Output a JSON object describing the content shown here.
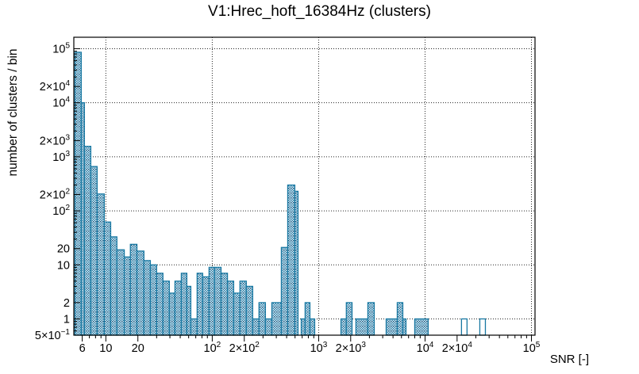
{
  "chart_data": {
    "type": "bar",
    "title": "V1:Hrec_hoft_16384Hz (clusters)",
    "xlabel": "SNR [-]",
    "ylabel": "number of clusters / bin",
    "x_scale": "log",
    "y_scale": "log",
    "x_range": [
      5,
      108000
    ],
    "y_range": [
      0.5,
      163000
    ],
    "grid": true,
    "legend": "none",
    "colors": {
      "bar_outline": "#1878a2",
      "bar_fill_dark": "#2e80a8",
      "bar_fill_light": "#ddecf4",
      "grid": "#000000",
      "axis": "#000000",
      "text": "#000000"
    },
    "x_ticks": [
      {
        "v": 6,
        "t": "6"
      },
      {
        "v": 10,
        "t": "10"
      },
      {
        "v": 20,
        "t": "20"
      },
      {
        "v": 100,
        "t": "10^2"
      },
      {
        "v": 200,
        "t": "2×10^2"
      },
      {
        "v": 1000,
        "t": "10^3"
      },
      {
        "v": 2000,
        "t": "2×10^3"
      },
      {
        "v": 10000,
        "t": "10^4"
      },
      {
        "v": 20000,
        "t": "2×10^4"
      },
      {
        "v": 100000,
        "t": "10^5"
      }
    ],
    "y_ticks": [
      {
        "v": 100000,
        "t": "10^5"
      },
      {
        "v": 20000,
        "t": "2×10^4"
      },
      {
        "v": 10000,
        "t": "10^4"
      },
      {
        "v": 2000,
        "t": "2×10^3"
      },
      {
        "v": 1000,
        "t": "10^3"
      },
      {
        "v": 200,
        "t": "2×10^2"
      },
      {
        "v": 100,
        "t": "10^2"
      },
      {
        "v": 20,
        "t": "20"
      },
      {
        "v": 10,
        "t": "10"
      },
      {
        "v": 2,
        "t": "2"
      },
      {
        "v": 1,
        "t": "1"
      },
      {
        "v": 0.5,
        "t": "5×10^−1"
      }
    ],
    "bars": [
      {
        "x0": 5.12,
        "x1": 5.87,
        "y": 86000
      },
      {
        "x0": 5.87,
        "x1": 6.29,
        "y": 10000
      },
      {
        "x0": 6.29,
        "x1": 7.22,
        "y": 1560
      },
      {
        "x0": 7.22,
        "x1": 8.28,
        "y": 660
      },
      {
        "x0": 8.28,
        "x1": 9.66,
        "y": 205
      },
      {
        "x0": 9.66,
        "x1": 11.1,
        "y": 62
      },
      {
        "x0": 11.1,
        "x1": 12.7,
        "y": 33
      },
      {
        "x0": 12.7,
        "x1": 14.9,
        "y": 19
      },
      {
        "x0": 14.9,
        "x1": 17.0,
        "y": 14
      },
      {
        "x0": 17.0,
        "x1": 19.6,
        "y": 24
      },
      {
        "x0": 19.6,
        "x1": 22.8,
        "y": 18
      },
      {
        "x0": 22.8,
        "x1": 26.2,
        "y": 12
      },
      {
        "x0": 26.2,
        "x1": 30.0,
        "y": 10
      },
      {
        "x0": 30.0,
        "x1": 34.4,
        "y": 7
      },
      {
        "x0": 34.4,
        "x1": 39.5,
        "y": 5
      },
      {
        "x0": 39.5,
        "x1": 44.6,
        "y": 3
      },
      {
        "x0": 44.6,
        "x1": 51.2,
        "y": 5
      },
      {
        "x0": 51.2,
        "x1": 57.7,
        "y": 7
      },
      {
        "x0": 57.7,
        "x1": 62.9,
        "y": 4
      },
      {
        "x0": 62.9,
        "x1": 72.1,
        "y": 1
      },
      {
        "x0": 72.1,
        "x1": 81.3,
        "y": 7
      },
      {
        "x0": 81.3,
        "x1": 93.3,
        "y": 6
      },
      {
        "x0": 93.3,
        "x1": 105,
        "y": 9
      },
      {
        "x0": 105,
        "x1": 121,
        "y": 9
      },
      {
        "x0": 121,
        "x1": 139,
        "y": 7
      },
      {
        "x0": 139,
        "x1": 159,
        "y": 5
      },
      {
        "x0": 159,
        "x1": 182,
        "y": 3
      },
      {
        "x0": 182,
        "x1": 209,
        "y": 5
      },
      {
        "x0": 209,
        "x1": 240,
        "y": 4
      },
      {
        "x0": 240,
        "x1": 275,
        "y": 1
      },
      {
        "x0": 275,
        "x1": 316,
        "y": 2
      },
      {
        "x0": 316,
        "x1": 363,
        "y": 1
      },
      {
        "x0": 363,
        "x1": 446,
        "y": 2
      },
      {
        "x0": 446,
        "x1": 512,
        "y": 21
      },
      {
        "x0": 512,
        "x1": 597,
        "y": 300
      },
      {
        "x0": 597,
        "x1": 640,
        "y": 230
      },
      {
        "x0": 686,
        "x1": 746,
        "y": 1
      },
      {
        "x0": 746,
        "x1": 828,
        "y": 2
      },
      {
        "x0": 828,
        "x1": 918,
        "y": 1
      },
      {
        "x0": 1620,
        "x1": 1820,
        "y": 1
      },
      {
        "x0": 1820,
        "x1": 2060,
        "y": 2
      },
      {
        "x0": 2240,
        "x1": 2900,
        "y": 1
      },
      {
        "x0": 2900,
        "x1": 3330,
        "y": 2
      },
      {
        "x0": 4310,
        "x1": 5480,
        "y": 1
      },
      {
        "x0": 5480,
        "x1": 6180,
        "y": 2
      },
      {
        "x0": 6180,
        "x1": 6620,
        "y": 1
      },
      {
        "x0": 8000,
        "x1": 10700,
        "y": 1
      },
      {
        "x0": 22000,
        "x1": 24800,
        "y": 1,
        "outline": true
      },
      {
        "x0": 32700,
        "x1": 36900,
        "y": 1,
        "outline": true
      }
    ]
  }
}
